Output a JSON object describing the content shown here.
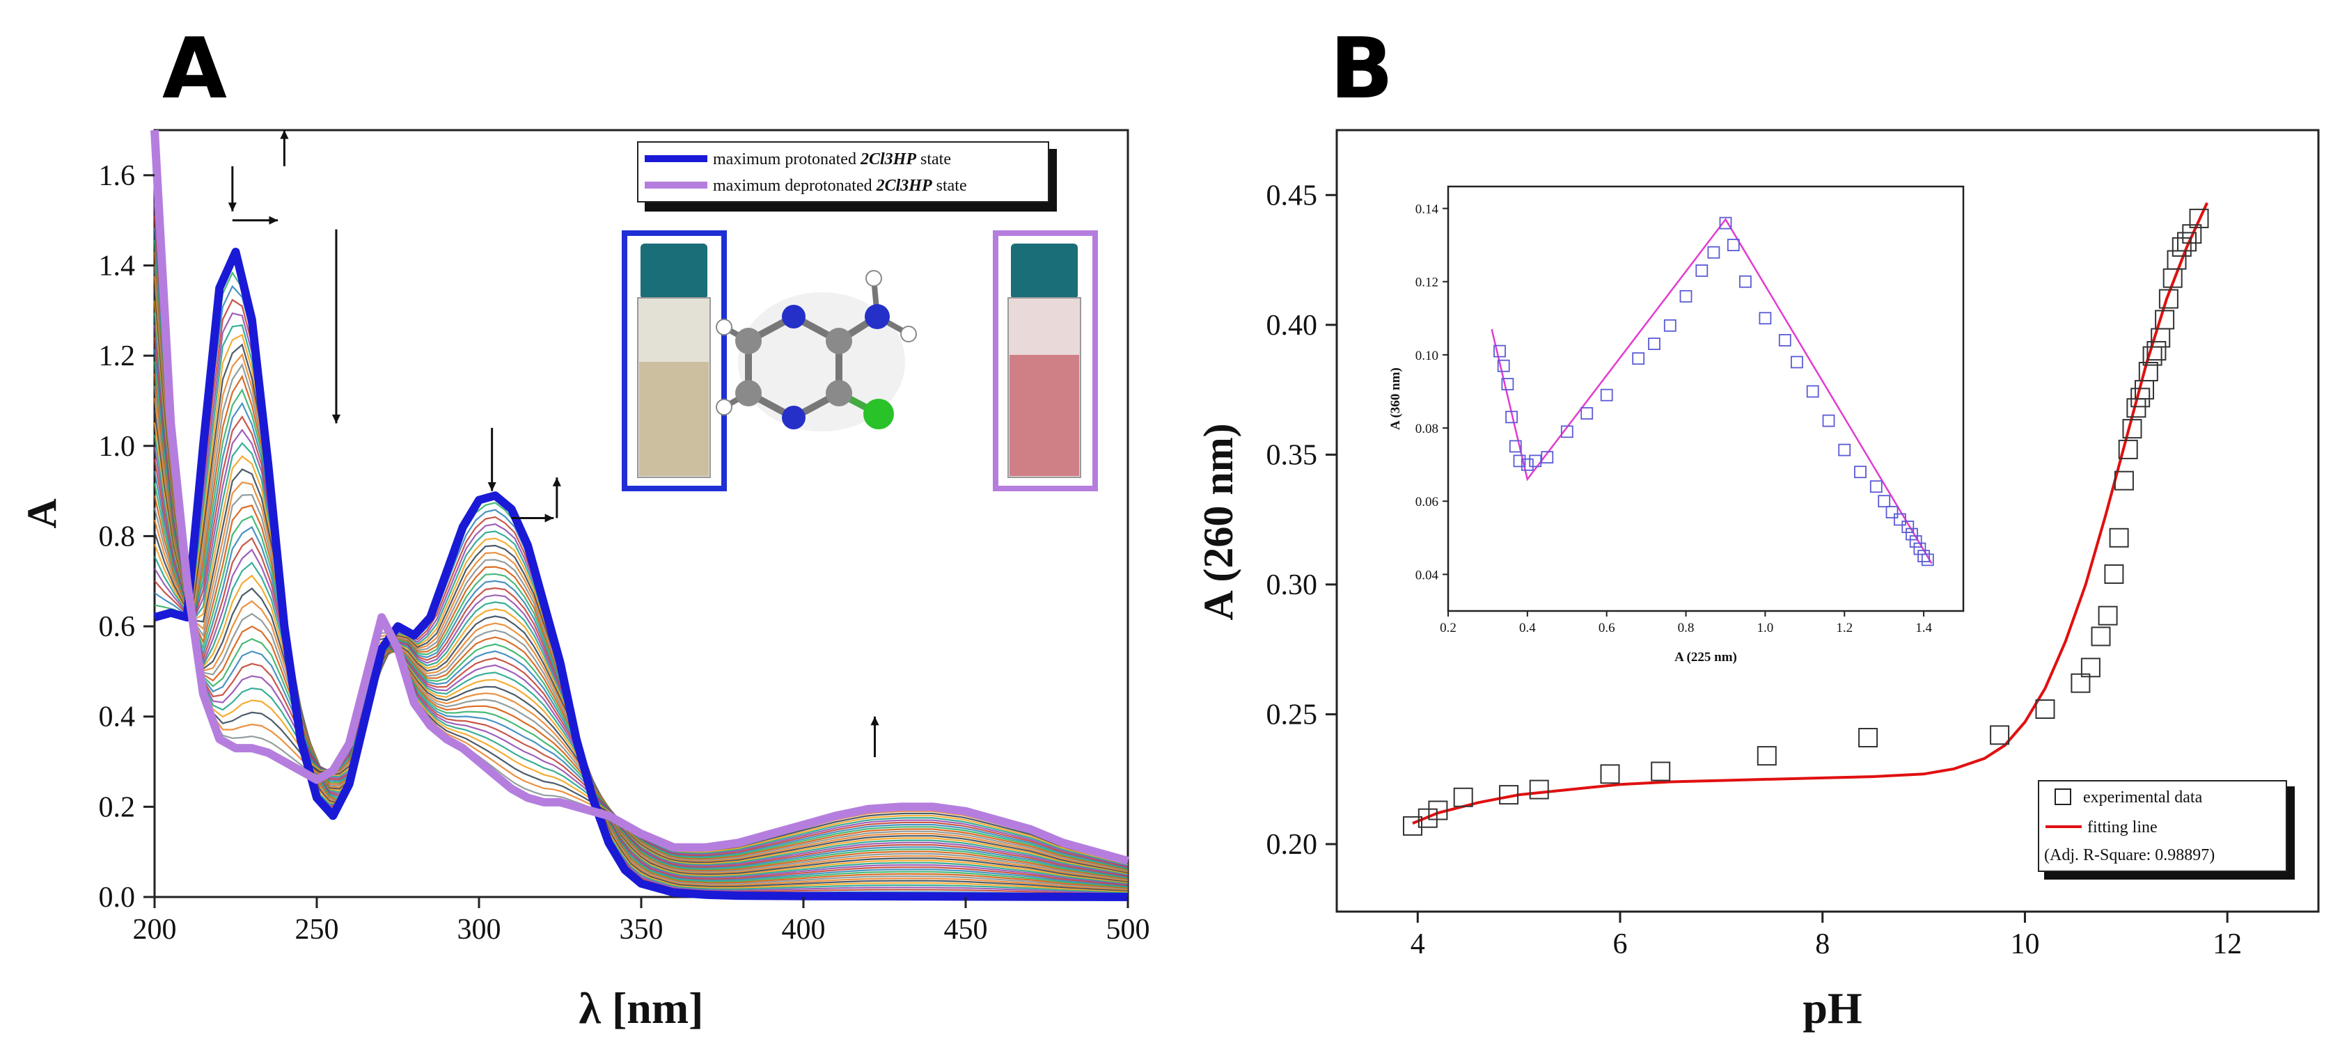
{
  "panels": {
    "a": "A",
    "b": "B"
  },
  "chart_data": [
    {
      "type": "line",
      "panel": "A",
      "title": "",
      "xlabel": "λ [nm]",
      "ylabel": "A",
      "xlim": [
        200,
        500
      ],
      "ylim": [
        0.0,
        1.7
      ],
      "xticks": [
        200,
        250,
        300,
        350,
        400,
        450,
        500
      ],
      "yticks": [
        0.0,
        0.2,
        0.4,
        0.6,
        0.8,
        1.0,
        1.2,
        1.4,
        1.6
      ],
      "n_intermediate_spectra": 40,
      "series": [
        {
          "name": "maximum protonated 2Cl3HP state",
          "color": "#1a1ad6",
          "x": [
            200,
            205,
            210,
            215,
            220,
            225,
            230,
            235,
            240,
            245,
            250,
            255,
            260,
            265,
            270,
            275,
            280,
            285,
            290,
            295,
            300,
            305,
            310,
            315,
            320,
            325,
            330,
            335,
            340,
            345,
            350,
            360,
            370,
            380,
            400,
            450,
            500
          ],
          "y": [
            0.62,
            0.63,
            0.62,
            1.0,
            1.35,
            1.43,
            1.28,
            0.96,
            0.6,
            0.35,
            0.22,
            0.18,
            0.25,
            0.4,
            0.55,
            0.6,
            0.58,
            0.62,
            0.72,
            0.82,
            0.88,
            0.89,
            0.86,
            0.78,
            0.65,
            0.52,
            0.35,
            0.22,
            0.12,
            0.06,
            0.03,
            0.01,
            0.005,
            0.003,
            0.002,
            0.001,
            0.0
          ]
        },
        {
          "name": "maximum deprotonated 2Cl3HP state",
          "color": "#b57ede",
          "x": [
            200,
            205,
            210,
            215,
            220,
            225,
            230,
            235,
            240,
            245,
            250,
            255,
            260,
            265,
            270,
            275,
            280,
            285,
            290,
            295,
            300,
            305,
            310,
            315,
            320,
            325,
            330,
            340,
            350,
            360,
            370,
            380,
            390,
            400,
            410,
            420,
            430,
            440,
            450,
            460,
            470,
            480,
            490,
            500
          ],
          "y": [
            1.7,
            1.05,
            0.7,
            0.45,
            0.35,
            0.33,
            0.33,
            0.32,
            0.3,
            0.28,
            0.26,
            0.28,
            0.34,
            0.48,
            0.62,
            0.55,
            0.43,
            0.38,
            0.35,
            0.33,
            0.3,
            0.27,
            0.24,
            0.22,
            0.21,
            0.21,
            0.2,
            0.18,
            0.14,
            0.11,
            0.11,
            0.12,
            0.14,
            0.16,
            0.18,
            0.195,
            0.2,
            0.2,
            0.19,
            0.17,
            0.15,
            0.12,
            0.1,
            0.08
          ]
        }
      ],
      "legend": [
        "maximum protonated 2Cl3HP state",
        "maximum deprotonated 2Cl3HP state"
      ],
      "arrows": [
        "down at 225 nm",
        "up at 240 nm",
        "right shift 225→240 nm",
        "down at 255 nm",
        "down at 305 nm",
        "right shift 305→325 nm",
        "up at 325 nm",
        "up at 420 nm"
      ]
    },
    {
      "type": "scatter",
      "panel": "B",
      "xlabel": "pH",
      "ylabel": "A (260 nm)",
      "xlim": [
        3.2,
        12.9
      ],
      "ylim": [
        0.174,
        0.475
      ],
      "xticks": [
        4,
        6,
        8,
        10,
        12
      ],
      "yticks": [
        0.2,
        0.25,
        0.3,
        0.35,
        0.4,
        0.45
      ],
      "series": [
        {
          "name": "experimental data",
          "color": "#222222",
          "x": [
            3.95,
            4.1,
            4.2,
            4.45,
            4.9,
            5.2,
            5.9,
            6.4,
            7.45,
            8.45,
            9.75,
            10.2,
            10.55,
            10.65,
            10.75,
            10.82,
            10.88,
            10.93,
            10.98,
            11.02,
            11.06,
            11.1,
            11.14,
            11.18,
            11.22,
            11.26,
            11.3,
            11.34,
            11.38,
            11.42,
            11.46,
            11.5,
            11.55,
            11.6,
            11.65,
            11.72
          ],
          "y": [
            0.207,
            0.21,
            0.213,
            0.218,
            0.219,
            0.221,
            0.227,
            0.228,
            0.234,
            0.241,
            0.242,
            0.252,
            0.262,
            0.268,
            0.28,
            0.288,
            0.304,
            0.318,
            0.34,
            0.352,
            0.36,
            0.368,
            0.372,
            0.375,
            0.382,
            0.388,
            0.39,
            0.395,
            0.402,
            0.41,
            0.418,
            0.425,
            0.43,
            0.432,
            0.435,
            0.441
          ]
        },
        {
          "name": "fitting line",
          "color": "#e01010",
          "x": [
            3.95,
            4.2,
            4.6,
            5.0,
            5.5,
            6.0,
            6.5,
            7.0,
            7.5,
            8.0,
            8.5,
            9.0,
            9.3,
            9.6,
            9.8,
            10.0,
            10.2,
            10.4,
            10.6,
            10.8,
            11.0,
            11.2,
            11.4,
            11.6,
            11.8
          ],
          "y": [
            0.208,
            0.212,
            0.216,
            0.219,
            0.221,
            0.223,
            0.224,
            0.2245,
            0.225,
            0.2255,
            0.226,
            0.227,
            0.229,
            0.233,
            0.238,
            0.247,
            0.26,
            0.278,
            0.3,
            0.327,
            0.356,
            0.385,
            0.41,
            0.43,
            0.447
          ]
        }
      ],
      "legend": [
        "experimental data",
        "fitting line"
      ],
      "legend_note": "(Adj. R-Square: 0.98897)",
      "inset": {
        "type": "scatter",
        "xlabel": "A (225 nm)",
        "ylabel": "A (360 nm)",
        "xlim": [
          0.2,
          1.5
        ],
        "ylim": [
          0.03,
          0.146
        ],
        "xticks": [
          0.2,
          0.4,
          0.6,
          0.8,
          1.0,
          1.2,
          1.4
        ],
        "yticks": [
          0.04,
          0.06,
          0.08,
          0.1,
          0.12,
          0.14
        ],
        "points": {
          "x": [
            0.33,
            0.34,
            0.35,
            0.36,
            0.37,
            0.38,
            0.4,
            0.42,
            0.45,
            0.5,
            0.55,
            0.6,
            0.68,
            0.72,
            0.76,
            0.8,
            0.84,
            0.87,
            0.9,
            0.92,
            0.95,
            1.0,
            1.05,
            1.08,
            1.12,
            1.16,
            1.2,
            1.24,
            1.28,
            1.3,
            1.32,
            1.34,
            1.36,
            1.37,
            1.38,
            1.39,
            1.4,
            1.41
          ],
          "y": [
            0.101,
            0.097,
            0.092,
            0.083,
            0.075,
            0.071,
            0.07,
            0.071,
            0.072,
            0.079,
            0.084,
            0.089,
            0.099,
            0.103,
            0.108,
            0.116,
            0.123,
            0.128,
            0.136,
            0.13,
            0.12,
            0.11,
            0.104,
            0.098,
            0.09,
            0.082,
            0.074,
            0.068,
            0.064,
            0.06,
            0.057,
            0.055,
            0.053,
            0.051,
            0.049,
            0.047,
            0.045,
            0.044
          ]
        },
        "fit": {
          "x": [
            0.31,
            0.4,
            0.9,
            1.42
          ],
          "y": [
            0.107,
            0.066,
            0.137,
            0.043
          ]
        }
      }
    }
  ],
  "legendA": {
    "prefix": "maximum ",
    "compound": "2Cl3HP",
    "protonated": "protonated",
    "deprotonated": "deprotonated",
    "suffix": " state"
  }
}
